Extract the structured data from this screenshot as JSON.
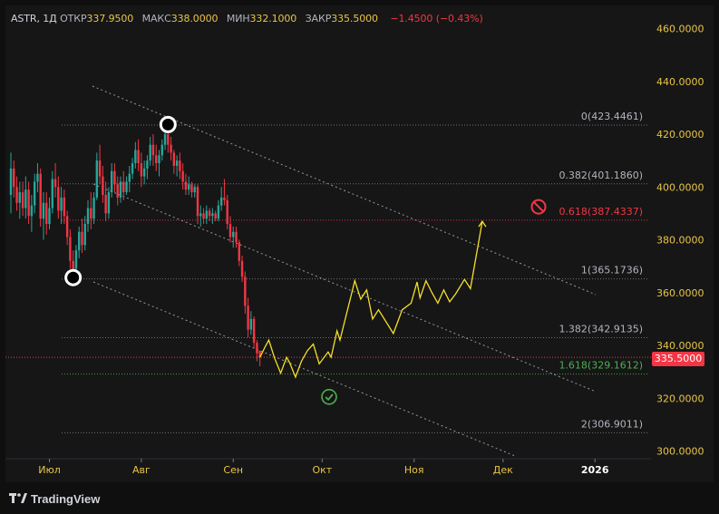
{
  "header": {
    "symbol": "ASTR",
    "interval": "1Д",
    "open_label": "ОТКР",
    "open": "337.9500",
    "high_label": "МАКС",
    "high": "338.0000",
    "low_label": "МИН",
    "low": "332.1000",
    "close_label": "ЗАКР",
    "close": "335.5000",
    "change": "−1.4500 (−0.43%)"
  },
  "brand": {
    "name": "TradingView"
  },
  "current_price": "335.5000",
  "colors": {
    "background": "#161616",
    "axis_text": "#e8c547",
    "up": "#26a69a",
    "down": "#f23645",
    "projection": "#f5e02a",
    "fib_line": "#787b86",
    "fib_target": "#f23645",
    "fib_green": "#4caf50"
  },
  "icons": {
    "target_marker": "prohibited-icon",
    "success_marker": "check-circle-icon"
  },
  "chart_data": {
    "type": "candlestick",
    "y_ticks": [
      "460.0000",
      "440.0000",
      "420.0000",
      "400.0000",
      "380.0000",
      "360.0000",
      "340.0000",
      "320.0000",
      "300.0000"
    ],
    "x_ticks": [
      "Июл",
      "Авг",
      "Сен",
      "Окт",
      "Ноя",
      "Дек",
      "2026"
    ],
    "ylim": [
      295,
      465
    ],
    "grid": false,
    "fib_levels": [
      {
        "ratio": "0",
        "price": "423.4461",
        "label": "0(423.4461)",
        "kind": "normal"
      },
      {
        "ratio": "0.382",
        "price": "401.1860",
        "label": "0.382(401.1860)",
        "kind": "normal"
      },
      {
        "ratio": "0.618",
        "price": "387.4337",
        "label": "0.618(387.4337)",
        "kind": "target"
      },
      {
        "ratio": "1",
        "price": "365.1736",
        "label": "1(365.1736)",
        "kind": "normal"
      },
      {
        "ratio": "1.382",
        "price": "342.9135",
        "label": "1.382(342.9135)",
        "kind": "normal"
      },
      {
        "ratio": "1.618",
        "price": "329.1612",
        "label": "1.618(329.1612)",
        "kind": "green"
      },
      {
        "ratio": "2",
        "price": "306.9011",
        "label": "2(306.9011)",
        "kind": "normal"
      }
    ],
    "price_line": 335.5,
    "candles": [
      {
        "t": "Jun 18",
        "o": 397,
        "h": 413,
        "l": 390,
        "c": 407
      },
      {
        "t": "Jun 19",
        "o": 407,
        "h": 410,
        "l": 396,
        "c": 400
      },
      {
        "t": "Jun 20",
        "o": 400,
        "h": 404,
        "l": 391,
        "c": 394
      },
      {
        "t": "Jun 21",
        "o": 394,
        "h": 402,
        "l": 388,
        "c": 398
      },
      {
        "t": "Jun 22",
        "o": 398,
        "h": 402,
        "l": 389,
        "c": 392
      },
      {
        "t": "Jun 23",
        "o": 392,
        "h": 404,
        "l": 388,
        "c": 399
      },
      {
        "t": "Jun 24",
        "o": 399,
        "h": 402,
        "l": 386,
        "c": 389
      },
      {
        "t": "Jun 25",
        "o": 389,
        "h": 397,
        "l": 383,
        "c": 393
      },
      {
        "t": "Jun 26",
        "o": 393,
        "h": 405,
        "l": 390,
        "c": 402
      },
      {
        "t": "Jun 27",
        "o": 402,
        "h": 409,
        "l": 398,
        "c": 405
      },
      {
        "t": "Jun 28",
        "o": 405,
        "h": 407,
        "l": 385,
        "c": 388
      },
      {
        "t": "Jun 29",
        "o": 388,
        "h": 398,
        "l": 380,
        "c": 394
      },
      {
        "t": "Jun 30",
        "o": 394,
        "h": 398,
        "l": 382,
        "c": 386
      },
      {
        "t": "Jul 01",
        "o": 386,
        "h": 396,
        "l": 384,
        "c": 392
      },
      {
        "t": "Jul 02",
        "o": 392,
        "h": 406,
        "l": 390,
        "c": 403
      },
      {
        "t": "Jul 03",
        "o": 403,
        "h": 409,
        "l": 396,
        "c": 400
      },
      {
        "t": "Jul 04",
        "o": 400,
        "h": 404,
        "l": 388,
        "c": 391
      },
      {
        "t": "Jul 05",
        "o": 391,
        "h": 400,
        "l": 386,
        "c": 396
      },
      {
        "t": "Jul 06",
        "o": 396,
        "h": 399,
        "l": 386,
        "c": 389
      },
      {
        "t": "Jul 07",
        "o": 389,
        "h": 391,
        "l": 378,
        "c": 381
      },
      {
        "t": "Jul 08",
        "o": 381,
        "h": 384,
        "l": 369,
        "c": 372
      },
      {
        "t": "Jul 09",
        "o": 372,
        "h": 376,
        "l": 365,
        "c": 369
      },
      {
        "t": "Jul 10",
        "o": 369,
        "h": 378,
        "l": 366,
        "c": 376
      },
      {
        "t": "Jul 11",
        "o": 376,
        "h": 385,
        "l": 373,
        "c": 383
      },
      {
        "t": "Jul 12",
        "o": 383,
        "h": 388,
        "l": 375,
        "c": 378
      },
      {
        "t": "Jul 13",
        "o": 378,
        "h": 389,
        "l": 376,
        "c": 386
      },
      {
        "t": "Jul 14",
        "o": 386,
        "h": 395,
        "l": 383,
        "c": 392
      },
      {
        "t": "Jul 15",
        "o": 392,
        "h": 398,
        "l": 384,
        "c": 388
      },
      {
        "t": "Jul 16",
        "o": 388,
        "h": 398,
        "l": 386,
        "c": 396
      },
      {
        "t": "Jul 17",
        "o": 396,
        "h": 413,
        "l": 395,
        "c": 410
      },
      {
        "t": "Jul 18",
        "o": 410,
        "h": 416,
        "l": 401,
        "c": 404
      },
      {
        "t": "Jul 19",
        "o": 404,
        "h": 408,
        "l": 394,
        "c": 397
      },
      {
        "t": "Jul 20",
        "o": 397,
        "h": 402,
        "l": 387,
        "c": 390
      },
      {
        "t": "Jul 21",
        "o": 390,
        "h": 400,
        "l": 388,
        "c": 398
      },
      {
        "t": "Jul 22",
        "o": 398,
        "h": 409,
        "l": 396,
        "c": 406
      },
      {
        "t": "Jul 23",
        "o": 406,
        "h": 409,
        "l": 398,
        "c": 401
      },
      {
        "t": "Jul 24",
        "o": 401,
        "h": 404,
        "l": 393,
        "c": 396
      },
      {
        "t": "Jul 25",
        "o": 396,
        "h": 404,
        "l": 394,
        "c": 402
      },
      {
        "t": "Jul 26",
        "o": 402,
        "h": 406,
        "l": 395,
        "c": 398
      },
      {
        "t": "Jul 27",
        "o": 398,
        "h": 404,
        "l": 397,
        "c": 402
      },
      {
        "t": "Jul 28",
        "o": 402,
        "h": 408,
        "l": 398,
        "c": 405
      },
      {
        "t": "Jul 29",
        "o": 405,
        "h": 411,
        "l": 403,
        "c": 409
      },
      {
        "t": "Jul 30",
        "o": 409,
        "h": 417,
        "l": 407,
        "c": 414
      },
      {
        "t": "Jul 31",
        "o": 414,
        "h": 418,
        "l": 406,
        "c": 409
      },
      {
        "t": "Aug 01",
        "o": 409,
        "h": 413,
        "l": 400,
        "c": 404
      },
      {
        "t": "Aug 02",
        "o": 404,
        "h": 410,
        "l": 401,
        "c": 407
      },
      {
        "t": "Aug 03",
        "o": 407,
        "h": 412,
        "l": 403,
        "c": 410
      },
      {
        "t": "Aug 04",
        "o": 410,
        "h": 419,
        "l": 408,
        "c": 416
      },
      {
        "t": "Aug 05",
        "o": 416,
        "h": 420,
        "l": 408,
        "c": 412
      },
      {
        "t": "Aug 06",
        "o": 412,
        "h": 416,
        "l": 406,
        "c": 409
      },
      {
        "t": "Aug 07",
        "o": 409,
        "h": 414,
        "l": 404,
        "c": 412
      },
      {
        "t": "Aug 08",
        "o": 412,
        "h": 418,
        "l": 410,
        "c": 416
      },
      {
        "t": "Aug 09",
        "o": 416,
        "h": 423,
        "l": 414,
        "c": 420
      },
      {
        "t": "Aug 10",
        "o": 420,
        "h": 424,
        "l": 413,
        "c": 416
      },
      {
        "t": "Aug 11",
        "o": 416,
        "h": 419,
        "l": 410,
        "c": 413
      },
      {
        "t": "Aug 12",
        "o": 413,
        "h": 414,
        "l": 405,
        "c": 408
      },
      {
        "t": "Aug 13",
        "o": 408,
        "h": 412,
        "l": 404,
        "c": 410
      },
      {
        "t": "Aug 14",
        "o": 410,
        "h": 413,
        "l": 403,
        "c": 406
      },
      {
        "t": "Aug 15",
        "o": 406,
        "h": 409,
        "l": 399,
        "c": 402
      },
      {
        "t": "Aug 16",
        "o": 402,
        "h": 405,
        "l": 397,
        "c": 399
      },
      {
        "t": "Aug 17",
        "o": 399,
        "h": 404,
        "l": 397,
        "c": 401
      },
      {
        "t": "Aug 18",
        "o": 401,
        "h": 402,
        "l": 396,
        "c": 398
      },
      {
        "t": "Aug 19",
        "o": 398,
        "h": 401,
        "l": 396,
        "c": 400
      },
      {
        "t": "Aug 20",
        "o": 400,
        "h": 401,
        "l": 386,
        "c": 389
      },
      {
        "t": "Aug 21",
        "o": 389,
        "h": 393,
        "l": 385,
        "c": 390
      },
      {
        "t": "Aug 22",
        "o": 390,
        "h": 392,
        "l": 386,
        "c": 388
      },
      {
        "t": "Aug 23",
        "o": 388,
        "h": 393,
        "l": 386,
        "c": 391
      },
      {
        "t": "Aug 24",
        "o": 391,
        "h": 392,
        "l": 387,
        "c": 389
      },
      {
        "t": "Aug 25",
        "o": 389,
        "h": 392,
        "l": 386,
        "c": 390
      },
      {
        "t": "Aug 26",
        "o": 390,
        "h": 391,
        "l": 387,
        "c": 388
      },
      {
        "t": "Aug 27",
        "o": 388,
        "h": 395,
        "l": 387,
        "c": 393
      },
      {
        "t": "Aug 28",
        "o": 393,
        "h": 400,
        "l": 391,
        "c": 396
      },
      {
        "t": "Aug 29",
        "o": 396,
        "h": 403,
        "l": 393,
        "c": 395
      },
      {
        "t": "Aug 30",
        "o": 395,
        "h": 397,
        "l": 384,
        "c": 386
      },
      {
        "t": "Aug 31",
        "o": 386,
        "h": 389,
        "l": 379,
        "c": 381
      },
      {
        "t": "Sep 01",
        "o": 381,
        "h": 385,
        "l": 377,
        "c": 383
      },
      {
        "t": "Sep 02",
        "o": 383,
        "h": 385,
        "l": 377,
        "c": 379
      },
      {
        "t": "Sep 03",
        "o": 379,
        "h": 380,
        "l": 370,
        "c": 372
      },
      {
        "t": "Sep 04",
        "o": 372,
        "h": 374,
        "l": 364,
        "c": 366
      },
      {
        "t": "Sep 05",
        "o": 366,
        "h": 368,
        "l": 352,
        "c": 355
      },
      {
        "t": "Sep 06",
        "o": 355,
        "h": 358,
        "l": 343,
        "c": 346
      },
      {
        "t": "Sep 07",
        "o": 346,
        "h": 353,
        "l": 344,
        "c": 350
      },
      {
        "t": "Sep 08",
        "o": 350,
        "h": 351,
        "l": 339,
        "c": 341
      },
      {
        "t": "Sep 09",
        "o": 341,
        "h": 342,
        "l": 334,
        "c": 337
      },
      {
        "t": "Sep 10",
        "o": 337.95,
        "h": 338,
        "l": 332.1,
        "c": 335.5
      }
    ],
    "projection": [
      {
        "t": "Sep 12",
        "y": 340.0
      },
      {
        "t": "Sep 13",
        "y": 342.0
      },
      {
        "t": "Sep 15",
        "y": 335.0
      },
      {
        "t": "Sep 17",
        "y": 329.5
      },
      {
        "t": "Sep 19",
        "y": 335.5
      },
      {
        "t": "Sep 20",
        "y": 333.5
      },
      {
        "t": "Sep 22",
        "y": 328.0
      },
      {
        "t": "Sep 24",
        "y": 334.0
      },
      {
        "t": "Sep 26",
        "y": 338.0
      },
      {
        "t": "Sep 28",
        "y": 340.5
      },
      {
        "t": "Sep 30",
        "y": 333.0
      },
      {
        "t": "Oct 03",
        "y": 337.5
      },
      {
        "t": "Oct 04",
        "y": 335.5
      },
      {
        "t": "Oct 06",
        "y": 345.5
      },
      {
        "t": "Oct 07",
        "y": 342.0
      },
      {
        "t": "Oct 12",
        "y": 364.5
      },
      {
        "t": "Oct 14",
        "y": 357.5
      },
      {
        "t": "Oct 16",
        "y": 361.0
      },
      {
        "t": "Oct 18",
        "y": 350.0
      },
      {
        "t": "Oct 20",
        "y": 353.5
      },
      {
        "t": "Oct 25",
        "y": 344.5
      },
      {
        "t": "Oct 28",
        "y": 353.5
      },
      {
        "t": "Oct 31",
        "y": 356.0
      },
      {
        "t": "Nov 02",
        "y": 364.0
      },
      {
        "t": "Nov 03",
        "y": 358.0
      },
      {
        "t": "Nov 05",
        "y": 364.5
      },
      {
        "t": "Nov 07",
        "y": 360.0
      },
      {
        "t": "Nov 09",
        "y": 356.0
      },
      {
        "t": "Nov 11",
        "y": 361.0
      },
      {
        "t": "Nov 13",
        "y": 356.5
      },
      {
        "t": "Nov 15",
        "y": 359.5
      },
      {
        "t": "Nov 18",
        "y": 365.0
      },
      {
        "t": "Nov 20",
        "y": 361.5
      },
      {
        "t": "Nov 24",
        "y": 387.0
      }
    ]
  }
}
